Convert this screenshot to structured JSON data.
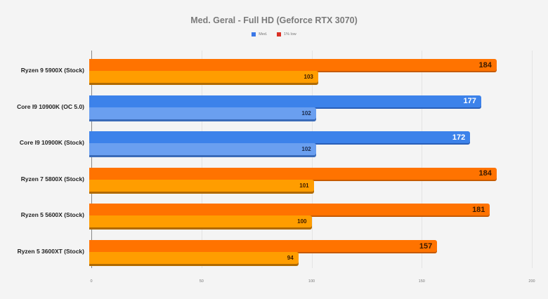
{
  "chart_data": {
    "type": "bar",
    "orientation": "horizontal",
    "title": "Med. Geral - Full HD (Geforce RTX 3070)",
    "legend": [
      {
        "label": "Med.",
        "color": "#3b78e7"
      },
      {
        "label": "1% low",
        "color": "#d93025"
      }
    ],
    "legend_position": "top",
    "xlabel": "",
    "ylabel": "",
    "xlim": [
      0,
      200
    ],
    "x_ticks": [
      "0",
      "50",
      "100",
      "150",
      "200"
    ],
    "grid": true,
    "categories": [
      "Ryzen 9 5900X (Stock)",
      "Core I9 10900K (OC 5.0)",
      "Core I9 10900K (Stock)",
      "Ryzen 7 5800X (Stock)",
      "Ryzen 5 5600X (Stock)",
      "Ryzen 5 3600XT (Stock)"
    ],
    "series": [
      {
        "name": "Med.",
        "values": [
          184,
          177,
          172,
          184,
          181,
          157
        ]
      },
      {
        "name": "1% low",
        "values": [
          103,
          102,
          102,
          101,
          100,
          94
        ]
      }
    ],
    "bar_colors": {
      "amd_main": "#ff7300",
      "amd_low": "#ff9d00",
      "intel_main": "#3c82ea",
      "intel_low": "#6a9ff0"
    }
  }
}
